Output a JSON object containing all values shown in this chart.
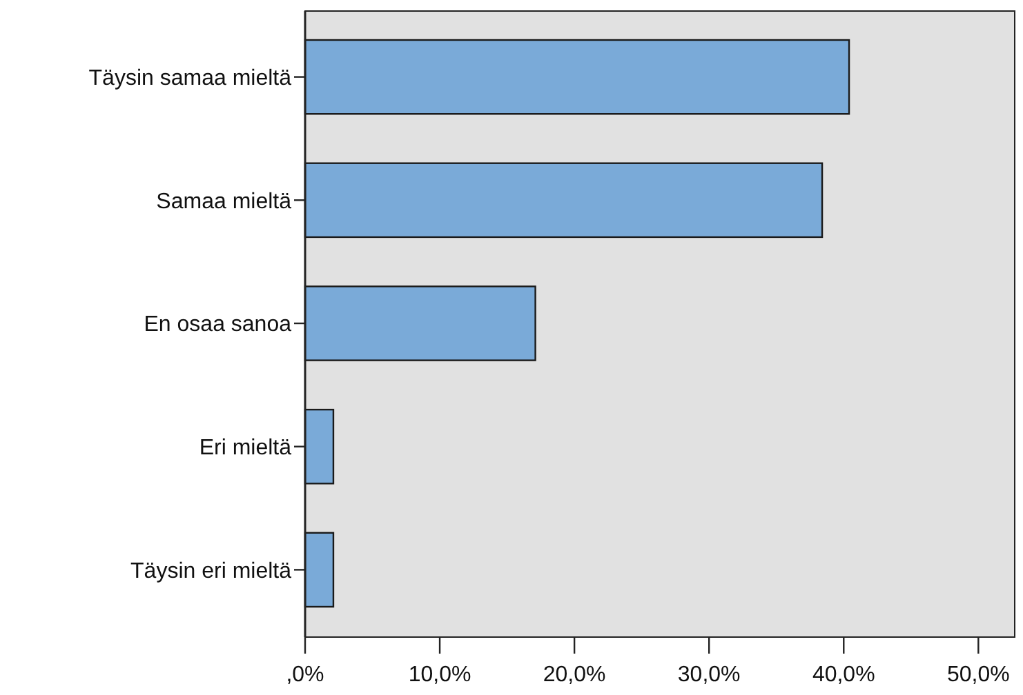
{
  "chart_data": {
    "type": "bar",
    "orientation": "horizontal",
    "categories": [
      "Täysin samaa mieltä",
      "Samaa mieltä",
      "En osaa sanoa",
      "Eri mieltä",
      "Täysin eri mieltä"
    ],
    "values": [
      40.4,
      38.4,
      17.1,
      2.1,
      2.1
    ],
    "color": "#7aaad8",
    "xlim": [
      0,
      52.7
    ],
    "xticks": [
      {
        "value": 0,
        "label": ",0%"
      },
      {
        "value": 10,
        "label": "10,0%"
      },
      {
        "value": 20,
        "label": "20,0%"
      },
      {
        "value": 30,
        "label": "30,0%"
      },
      {
        "value": 40,
        "label": "40,0%"
      },
      {
        "value": 50,
        "label": "50,0%"
      }
    ],
    "grid": false
  }
}
